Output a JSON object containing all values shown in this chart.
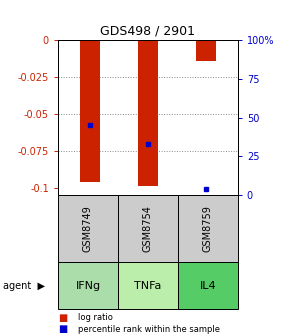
{
  "title": "GDS498 / 2901",
  "samples": [
    "GSM8749",
    "GSM8754",
    "GSM8759"
  ],
  "agents": [
    "IFNg",
    "TNFa",
    "IL4"
  ],
  "log_ratios": [
    -0.096,
    -0.099,
    -0.014
  ],
  "percentile_ranks": [
    45,
    33,
    4
  ],
  "ylim_min": -0.105,
  "ylim_max": 0.0,
  "yticks_left": [
    0,
    -0.025,
    -0.05,
    -0.075,
    -0.1
  ],
  "yticks_right_pct": [
    100,
    75,
    50,
    25,
    0
  ],
  "bar_color": "#cc2200",
  "pct_color": "#0000cc",
  "sample_bg": "#cccccc",
  "agent_colors": [
    "#aaddaa",
    "#bbeeaa",
    "#55cc66"
  ],
  "legend_bar_label": "log ratio",
  "legend_pct_label": "percentile rank within the sample",
  "bar_width": 0.35
}
